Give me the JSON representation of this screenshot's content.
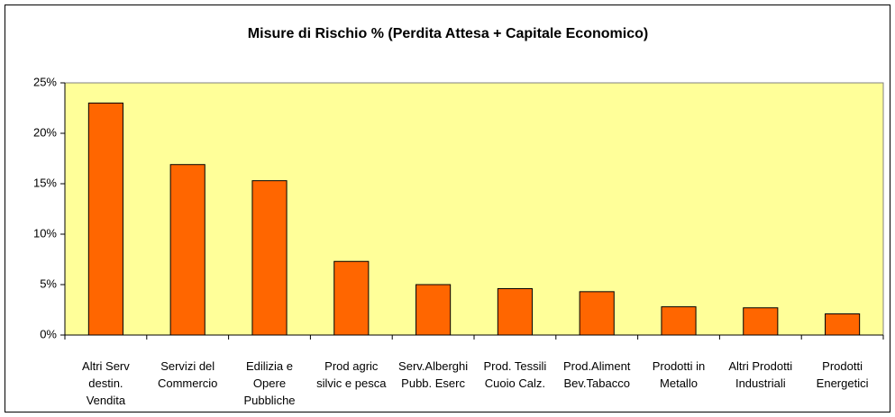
{
  "chart_data": {
    "type": "bar",
    "title": "Misure di Rischio % (Perdita Attesa + Capitale Economico)",
    "categories": [
      "Altri Serv\ndestin.\nVendita",
      "Servizi del\nCommercio",
      "Edilizia e\nOpere\nPubbliche",
      "Prod agric\nsilvic e pesca",
      "Serv.Alberghi\nPubb. Eserc",
      "Prod. Tessili\nCuoio Calz.",
      "Prod.Aliment\nBev.Tabacco",
      "Prodotti in\nMetallo",
      "Altri Prodotti\nIndustriali",
      "Prodotti\nEnergetici"
    ],
    "values": [
      23,
      16.9,
      15.3,
      7.3,
      5.0,
      4.6,
      4.3,
      2.8,
      2.7,
      2.1
    ],
    "color": "#ff6600",
    "background": "#ffff99",
    "ylim": [
      0,
      25
    ],
    "yticks": [
      {
        "value": 0,
        "label": "0%"
      },
      {
        "value": 5,
        "label": "5%"
      },
      {
        "value": 10,
        "label": "10%"
      },
      {
        "value": 15,
        "label": "15%"
      },
      {
        "value": 20,
        "label": "20%"
      },
      {
        "value": 25,
        "label": "25%"
      }
    ],
    "grid": false
  }
}
